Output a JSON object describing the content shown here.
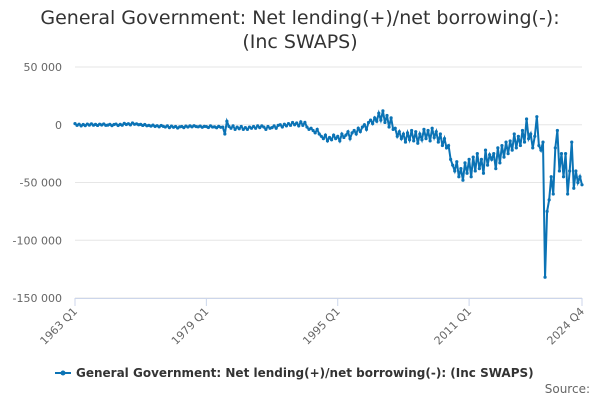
{
  "chart_data": {
    "type": "line",
    "title": "General Government: Net lending(+)/net borrowing(-): (Inc SWAPS)",
    "source": "Source:",
    "categories": [
      "1963 Q1",
      null,
      null,
      null,
      null,
      null,
      null,
      null,
      null,
      null,
      null,
      null,
      null,
      null,
      null,
      null,
      null,
      null,
      null,
      null,
      null,
      null,
      null,
      null,
      null,
      null,
      null,
      null,
      null,
      null,
      null,
      null,
      null,
      null,
      null,
      null,
      null,
      null,
      null,
      null,
      null,
      null,
      null,
      null,
      null,
      null,
      null,
      null,
      null,
      null,
      null,
      null,
      null,
      null,
      null,
      null,
      null,
      null,
      null,
      null,
      null,
      null,
      null,
      null,
      "1979 Q1",
      null,
      null,
      null,
      null,
      null,
      null,
      null,
      null,
      null,
      null,
      null,
      null,
      null,
      null,
      null,
      null,
      null,
      null,
      null,
      null,
      null,
      null,
      null,
      null,
      null,
      null,
      null,
      null,
      null,
      null,
      null,
      null,
      null,
      null,
      null,
      null,
      null,
      null,
      null,
      null,
      null,
      null,
      null,
      null,
      null,
      null,
      null,
      null,
      null,
      null,
      null,
      null,
      null,
      null,
      null,
      null,
      null,
      null,
      null,
      null,
      null,
      null,
      null,
      "1995 Q1",
      null,
      null,
      null,
      null,
      null,
      null,
      null,
      null,
      null,
      null,
      null,
      null,
      null,
      null,
      null,
      null,
      null,
      null,
      null,
      null,
      null,
      null,
      null,
      null,
      null,
      null,
      null,
      null,
      null,
      null,
      null,
      null,
      null,
      null,
      null,
      null,
      null,
      null,
      null,
      null,
      null,
      null,
      null,
      null,
      null,
      null,
      null,
      null,
      null,
      null,
      null,
      null,
      null,
      null,
      null,
      null,
      null,
      null,
      null,
      null,
      null,
      null,
      null,
      "2011 Q1",
      null,
      null,
      null,
      null,
      null,
      null,
      null,
      null,
      null,
      null,
      null,
      null,
      null,
      null,
      null,
      null,
      null,
      null,
      null,
      null,
      null,
      null,
      null,
      null,
      null,
      null,
      null,
      null,
      null,
      null,
      null,
      null,
      null,
      null,
      null,
      null,
      null,
      null,
      null,
      null,
      null,
      null,
      null,
      null,
      null,
      null,
      null,
      null,
      null,
      null,
      null,
      null,
      null,
      null,
      "2024 Q4"
    ],
    "series": [
      {
        "name": "General Government: Net lending(+)/net borrowing(-): (Inc SWAPS)",
        "color": "#0b73b5",
        "values": [
          1000,
          -500,
          500,
          -1000,
          200,
          -800,
          600,
          -300,
          800,
          -400,
          300,
          -600,
          500,
          -200,
          700,
          -500,
          -300,
          400,
          -800,
          200,
          600,
          -700,
          300,
          -400,
          1200,
          200,
          900,
          -100,
          1500,
          400,
          800,
          0,
          300,
          -600,
          200,
          -900,
          -500,
          -1200,
          -300,
          -1500,
          -800,
          -1800,
          -600,
          -1400,
          -2000,
          -1000,
          -2500,
          -1200,
          -2200,
          -1500,
          -2800,
          -1800,
          -1500,
          -2500,
          -1200,
          -2000,
          -1000,
          -1800,
          -800,
          -1600,
          -1800,
          -1200,
          -2200,
          -1400,
          -1600,
          -2400,
          -1000,
          -2000,
          -1800,
          -2600,
          -1400,
          -2200,
          -2000,
          -8000,
          3000,
          -1500,
          -3000,
          -1000,
          -4000,
          -2000,
          -3500,
          -1500,
          -4000,
          -2500,
          -4000,
          -2000,
          -3000,
          -1500,
          -3000,
          -1000,
          -2500,
          -1000,
          -2000,
          -4000,
          -1500,
          -3000,
          -2500,
          -1000,
          -3000,
          -500,
          0,
          -2000,
          500,
          -1000,
          1000,
          -500,
          2000,
          0,
          1500,
          -1000,
          2500,
          -500,
          2000,
          -2000,
          -4000,
          -3000,
          -5000,
          -7000,
          -4000,
          -8000,
          -10000,
          -12000,
          -9000,
          -14000,
          -11000,
          -13000,
          -9000,
          -12000,
          -10000,
          -14000,
          -8000,
          -11000,
          -9000,
          -6000,
          -12000,
          -7000,
          -5000,
          -8000,
          -3000,
          -6000,
          -2000,
          0,
          -4000,
          2000,
          4000,
          1000,
          6000,
          3000,
          10000,
          4000,
          12000,
          2000,
          8000,
          -2000,
          6000,
          -4000,
          -3000,
          -10000,
          -6000,
          -12000,
          -8000,
          -15000,
          -7000,
          -13000,
          -5000,
          -14000,
          -6000,
          -16000,
          -8000,
          -13000,
          -4000,
          -12000,
          -5000,
          -14000,
          -3000,
          -11000,
          -6000,
          -15000,
          -8000,
          -18000,
          -12000,
          -20000,
          -18000,
          -30000,
          -35000,
          -40000,
          -32000,
          -45000,
          -38000,
          -48000,
          -33000,
          -42000,
          -30000,
          -45000,
          -28000,
          -40000,
          -25000,
          -38000,
          -30000,
          -42000,
          -22000,
          -35000,
          -26000,
          -30000,
          -25000,
          -38000,
          -20000,
          -33000,
          -18000,
          -28000,
          -15000,
          -25000,
          -14000,
          -22000,
          -8000,
          -20000,
          -10000,
          -18000,
          -5000,
          -15000,
          5000,
          -12000,
          -8000,
          -20000,
          -10000,
          7000,
          -18000,
          -22000,
          -15000,
          -132000,
          -75000,
          -65000,
          -45000,
          -60000,
          -20000,
          -5000,
          -40000,
          -25000,
          -45000,
          -25000,
          -60000,
          -40000,
          -15000,
          -55000,
          -40000,
          -50000,
          -45000,
          -52000
        ]
      }
    ],
    "ylim": [
      -150000,
      50000
    ],
    "yticks": [
      {
        "value": 50000,
        "label": "50 000"
      },
      0,
      {
        "value": -50000,
        "label": "-50 000"
      },
      {
        "value": -100000,
        "label": "-100 000"
      },
      {
        "value": -150000,
        "label": "-150 000"
      }
    ],
    "grid": true,
    "legend": "bottom"
  }
}
